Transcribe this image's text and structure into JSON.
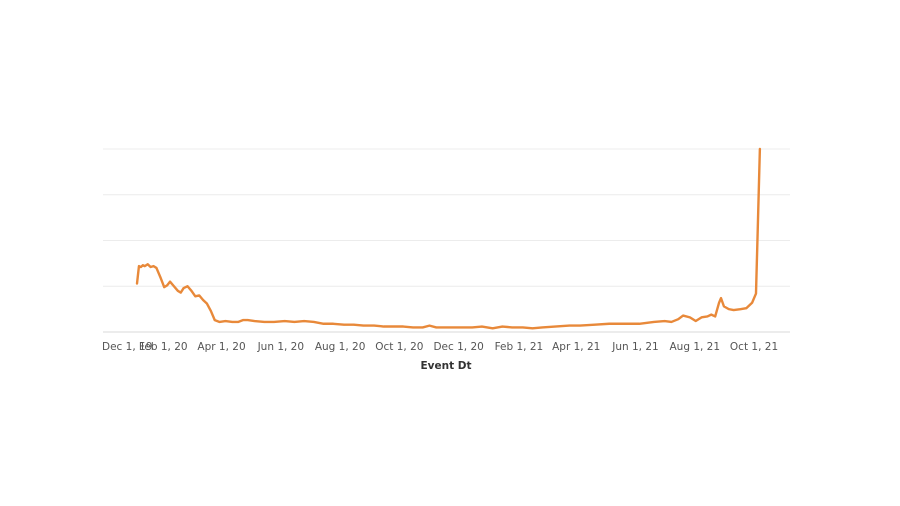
{
  "chart_data": {
    "type": "line",
    "title": "",
    "xlabel": "Event Dt",
    "ylabel": "",
    "grid": true,
    "legend": "none",
    "line_color": "#e8893a",
    "xlim": [
      "2019-12-01",
      "2021-11-07"
    ],
    "ylim": [
      0,
      100
    ],
    "y_gridlines": [
      0,
      25,
      50,
      75,
      100
    ],
    "x_ticks": [
      {
        "date": "2019-12-01",
        "label": "Dec 1, 19"
      },
      {
        "date": "2020-02-01",
        "label": "Feb 1, 20"
      },
      {
        "date": "2020-04-01",
        "label": "Apr 1, 20"
      },
      {
        "date": "2020-06-01",
        "label": "Jun 1, 20"
      },
      {
        "date": "2020-08-01",
        "label": "Aug 1, 20"
      },
      {
        "date": "2020-10-01",
        "label": "Oct 1, 20"
      },
      {
        "date": "2020-12-01",
        "label": "Dec 1, 20"
      },
      {
        "date": "2021-02-01",
        "label": "Feb 1, 21"
      },
      {
        "date": "2021-04-01",
        "label": "Apr 1, 21"
      },
      {
        "date": "2021-06-01",
        "label": "Jun 1, 21"
      },
      {
        "date": "2021-08-01",
        "label": "Aug 1, 21"
      },
      {
        "date": "2021-10-01",
        "label": "Oct 1, 21"
      }
    ],
    "series": [
      {
        "points": [
          [
            "2020-01-05",
            26.5
          ],
          [
            "2020-01-07",
            36
          ],
          [
            "2020-01-09",
            35.5
          ],
          [
            "2020-01-11",
            36.5
          ],
          [
            "2020-01-13",
            36
          ],
          [
            "2020-01-16",
            37
          ],
          [
            "2020-01-19",
            35.5
          ],
          [
            "2020-01-22",
            36
          ],
          [
            "2020-01-25",
            35
          ],
          [
            "2020-01-29",
            30
          ],
          [
            "2020-02-02",
            24.5
          ],
          [
            "2020-02-05",
            25.5
          ],
          [
            "2020-02-08",
            27.5
          ],
          [
            "2020-02-12",
            25
          ],
          [
            "2020-02-16",
            22.5
          ],
          [
            "2020-02-19",
            21.5
          ],
          [
            "2020-02-22",
            24
          ],
          [
            "2020-02-26",
            25
          ],
          [
            "2020-03-01",
            22.5
          ],
          [
            "2020-03-05",
            19.5
          ],
          [
            "2020-03-09",
            20
          ],
          [
            "2020-03-13",
            17.5
          ],
          [
            "2020-03-17",
            15.5
          ],
          [
            "2020-03-21",
            11.5
          ],
          [
            "2020-03-25",
            6.5
          ],
          [
            "2020-03-30",
            5.5
          ],
          [
            "2020-04-05",
            6
          ],
          [
            "2020-04-12",
            5.5
          ],
          [
            "2020-04-18",
            5.5
          ],
          [
            "2020-04-23",
            6.5
          ],
          [
            "2020-04-28",
            6.5
          ],
          [
            "2020-05-05",
            6
          ],
          [
            "2020-05-15",
            5.5
          ],
          [
            "2020-05-25",
            5.5
          ],
          [
            "2020-06-05",
            6
          ],
          [
            "2020-06-15",
            5.5
          ],
          [
            "2020-06-25",
            6
          ],
          [
            "2020-07-05",
            5.5
          ],
          [
            "2020-07-15",
            4.5
          ],
          [
            "2020-07-25",
            4.5
          ],
          [
            "2020-08-05",
            4
          ],
          [
            "2020-08-15",
            4
          ],
          [
            "2020-08-25",
            3.5
          ],
          [
            "2020-09-05",
            3.5
          ],
          [
            "2020-09-15",
            3
          ],
          [
            "2020-09-25",
            3
          ],
          [
            "2020-10-05",
            3
          ],
          [
            "2020-10-15",
            2.5
          ],
          [
            "2020-10-25",
            2.5
          ],
          [
            "2020-11-01",
            3.5
          ],
          [
            "2020-11-08",
            2.5
          ],
          [
            "2020-11-20",
            2.5
          ],
          [
            "2020-12-05",
            2.5
          ],
          [
            "2020-12-15",
            2.5
          ],
          [
            "2020-12-25",
            3
          ],
          [
            "2021-01-05",
            2
          ],
          [
            "2021-01-15",
            3
          ],
          [
            "2021-01-25",
            2.5
          ],
          [
            "2021-02-05",
            2.5
          ],
          [
            "2021-02-15",
            2
          ],
          [
            "2021-02-25",
            2.5
          ],
          [
            "2021-03-10",
            3
          ],
          [
            "2021-03-25",
            3.5
          ],
          [
            "2021-04-05",
            3.5
          ],
          [
            "2021-04-20",
            4
          ],
          [
            "2021-05-05",
            4.5
          ],
          [
            "2021-05-20",
            4.5
          ],
          [
            "2021-06-05",
            4.5
          ],
          [
            "2021-06-20",
            5.5
          ],
          [
            "2021-07-01",
            6
          ],
          [
            "2021-07-08",
            5.5
          ],
          [
            "2021-07-15",
            7
          ],
          [
            "2021-07-20",
            9
          ],
          [
            "2021-07-27",
            8
          ],
          [
            "2021-08-02",
            6
          ],
          [
            "2021-08-08",
            8
          ],
          [
            "2021-08-14",
            8.5
          ],
          [
            "2021-08-18",
            9.5
          ],
          [
            "2021-08-22",
            8.5
          ],
          [
            "2021-08-26",
            16
          ],
          [
            "2021-08-28",
            18.5
          ],
          [
            "2021-08-31",
            14
          ],
          [
            "2021-09-05",
            12.5
          ],
          [
            "2021-09-10",
            12
          ],
          [
            "2021-09-17",
            12.5
          ],
          [
            "2021-09-23",
            13
          ],
          [
            "2021-09-29",
            16
          ],
          [
            "2021-10-03",
            21
          ],
          [
            "2021-10-05",
            60
          ],
          [
            "2021-10-07",
            100
          ]
        ]
      }
    ]
  }
}
